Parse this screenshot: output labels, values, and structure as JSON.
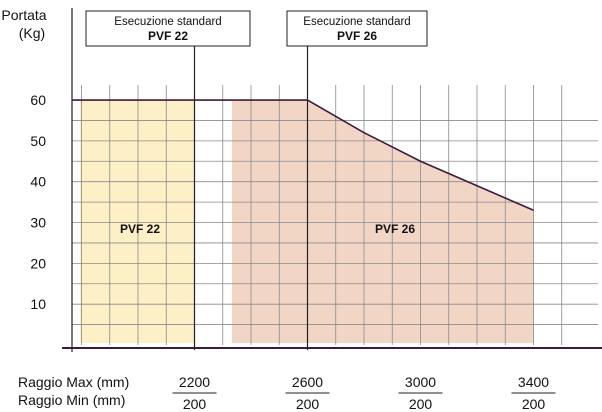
{
  "chart_data": {
    "type": "area",
    "ylabel": [
      "Portata",
      "(Kg)"
    ],
    "xlabel_rows": [
      "Raggio Max (mm)",
      "Raggio Min (mm)"
    ],
    "ylim": [
      0,
      60
    ],
    "yticks": [
      10,
      20,
      30,
      40,
      50,
      60
    ],
    "xlim": [
      1600,
      3400
    ],
    "x_ticks": [
      {
        "max": "2200",
        "min": "200",
        "value": 2200
      },
      {
        "max": "2600",
        "min": "200",
        "value": 2600
      },
      {
        "max": "3000",
        "min": "200",
        "value": 3000
      },
      {
        "max": "3400",
        "min": "200",
        "value": 3400
      }
    ],
    "grid": true,
    "series": [
      {
        "name": "PVF 22",
        "color": "#fdf0c6",
        "points": [
          [
            1630,
            60
          ],
          [
            2200,
            60
          ]
        ]
      },
      {
        "name": "PVF 26",
        "color": "#f2d6c5",
        "points": [
          [
            2250,
            60
          ],
          [
            2600,
            60
          ],
          [
            2800,
            52
          ],
          [
            3000,
            45
          ],
          [
            3200,
            39
          ],
          [
            3400,
            33
          ]
        ]
      }
    ],
    "annotations": [
      {
        "title": "Esecuzione standard",
        "subtitle": "PVF 22",
        "at_x": 2200
      },
      {
        "title": "Esecuzione standard",
        "subtitle": "PVF 26",
        "at_x": 2600
      }
    ]
  }
}
